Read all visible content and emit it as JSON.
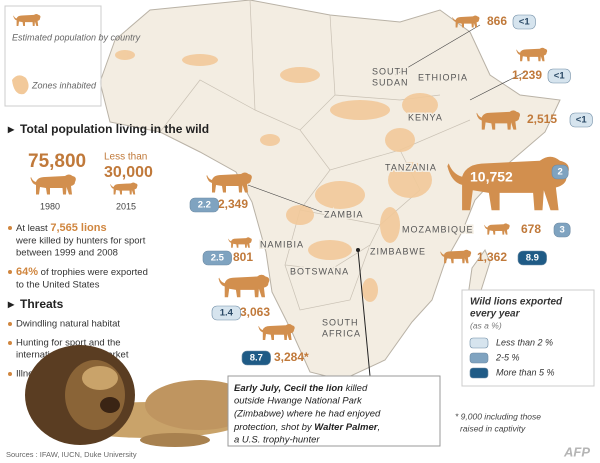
{
  "legend": {
    "population": "Estimated population by country",
    "zones": "Zones inhabited"
  },
  "summary": {
    "title": "Total population living in the wild",
    "past_value": "75,800",
    "past_year": "1980",
    "current_prefix": "Less than",
    "current_value": "30,000",
    "current_year": "2015",
    "killed": {
      "lead": "At least",
      "highlight": "7,565 lions",
      "lines": [
        "were killed by hunters for sport",
        "between 1999 and 2008"
      ]
    },
    "trophies": {
      "highlight": "64%",
      "lines": [
        "of trophies were exported",
        "to the United States"
      ]
    }
  },
  "threats": {
    "title": "Threats",
    "items": [
      [
        "Dwindling natural habitat"
      ],
      [
        "Hunting for sport and the",
        "international trophy market"
      ],
      [
        "Illness"
      ]
    ]
  },
  "countries": [
    [
      "SOUTH",
      "SUDAN"
    ],
    [
      "ETHIOPIA"
    ],
    [
      "KENYA"
    ],
    [
      "TANZANIA"
    ],
    [
      "ZAMBIA"
    ],
    [
      "MOZAMBIQUE"
    ],
    [
      "NAMIBIA"
    ],
    [
      "ZIMBABWE"
    ],
    [
      "BOTSWANA"
    ],
    [
      "SOUTH",
      "AFRICA"
    ]
  ],
  "markers": [
    {
      "population": "866",
      "export": "<1",
      "color": "#d6e4ee"
    },
    {
      "population": "1,239",
      "export": "<1",
      "color": "#d6e4ee"
    },
    {
      "population": "2,515",
      "export": "<1",
      "color": "#d6e4ee"
    },
    {
      "population": "10,752",
      "export": "2",
      "color": "#7fa3c0"
    },
    {
      "population": "2,349",
      "export": "2.2",
      "color": "#7fa3c0"
    },
    {
      "population": "801",
      "export": "2.5",
      "color": "#7fa3c0"
    },
    {
      "population": "678",
      "export": "3",
      "color": "#7fa3c0"
    },
    {
      "population": "1,362",
      "export": "8.9",
      "color": "#1f5b86"
    },
    {
      "population": "3,063",
      "export": "1.4",
      "color": "#d6e4ee"
    },
    {
      "population": "3,284*",
      "export": "8.7",
      "color": "#1f5b86"
    }
  ],
  "export_legend": {
    "title": [
      "Wild lions exported",
      "every year"
    ],
    "unit": "(as a %)",
    "items": [
      {
        "label": "Less than 2 %",
        "color": "#d6e4ee"
      },
      {
        "label": "2-5 %",
        "color": "#7fa3c0"
      },
      {
        "label": "More than 5 %",
        "color": "#1f5b86"
      }
    ]
  },
  "caption": {
    "lines": [
      [
        "Early July, Cecil the lion",
        " killed"
      ],
      [
        "outside Hwange National Park"
      ],
      [
        "(Zimbabwe) where he had enjoyed"
      ],
      [
        "protection, shot by ",
        "Walter Palmer",
        ","
      ],
      [
        "a U.S. trophy-hunter"
      ]
    ]
  },
  "footnote": [
    "* 9,000 including those",
    "raised in captivity"
  ],
  "sources": "Sources : IFAW, IUCN, Duke University",
  "credit": "AFP"
}
